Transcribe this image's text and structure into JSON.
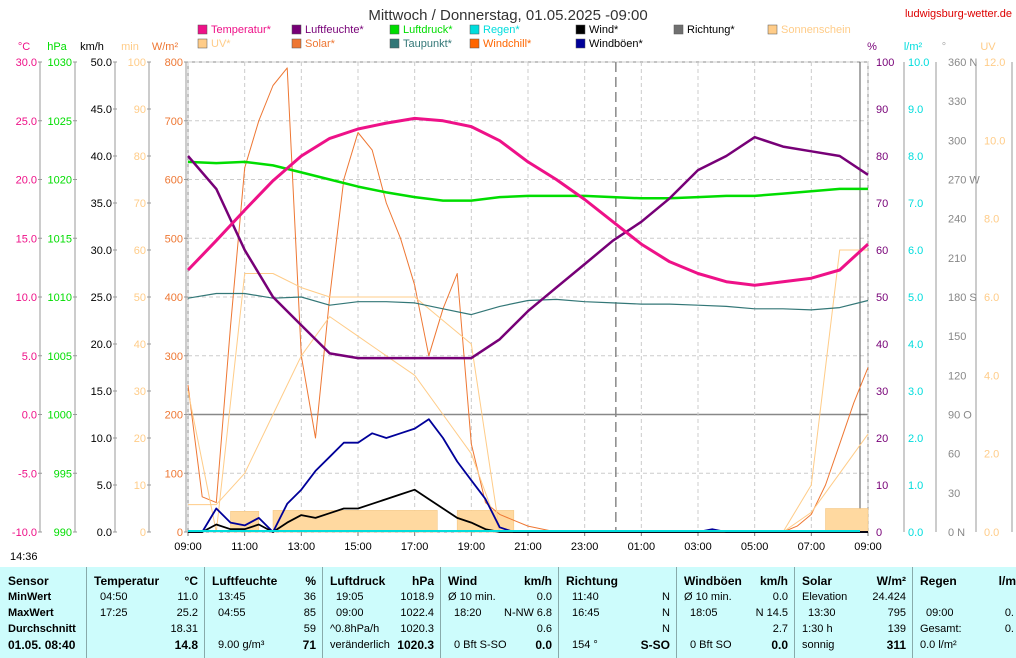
{
  "header": {
    "title": "Mittwoch / Donnerstag, 01.05.2025  -09:00",
    "site": "ludwigsburg-wetter.de"
  },
  "colors": {
    "temperature": "#ee1188",
    "humidity": "#770077",
    "pressure": "#00dd00",
    "rain": "#00dddd",
    "wind": "#000000",
    "direction": "#707070",
    "sunshine": "#ffcc88",
    "uv": "#ffcc88",
    "solar": "#ee7733",
    "dewpoint": "#337777",
    "windchill": "#ff6600",
    "gusts": "#000099",
    "table_bg": "#cdfcfc"
  },
  "legend": [
    {
      "label": "Temperatur*",
      "color": "#ee1188"
    },
    {
      "label": "Luftfeuchte*",
      "color": "#770077"
    },
    {
      "label": "Luftdruck*",
      "color": "#00dd00"
    },
    {
      "label": "Regen*",
      "color": "#00dddd"
    },
    {
      "label": "Wind*",
      "color": "#000000"
    },
    {
      "label": "Richtung*",
      "color": "#707070"
    },
    {
      "label": "Sonnenschein",
      "color": "#ffcc88"
    },
    {
      "label": "UV*",
      "color": "#ffcc88"
    },
    {
      "label": "Solar*",
      "color": "#ee7733"
    },
    {
      "label": "Taupunkt*",
      "color": "#337777"
    },
    {
      "label": "Windchill*",
      "color": "#ff6600"
    },
    {
      "label": "Windböen*",
      "color": "#000099"
    }
  ],
  "axes_units": {
    "left": [
      "°C",
      "hPa",
      "km/h",
      "min",
      "W/m²"
    ],
    "right": [
      "%",
      "l/m²",
      "°",
      "UV"
    ]
  },
  "current_time_label": "14:36",
  "chart_data": {
    "type": "line",
    "title": "Mittwoch / Donnerstag, 01.05.2025  -09:00",
    "x_ticks": [
      "09:00",
      "11:00",
      "13:00",
      "15:00",
      "17:00",
      "19:00",
      "21:00",
      "23:00",
      "01:00",
      "03:00",
      "05:00",
      "07:00",
      "09:00"
    ],
    "x_range_hours": [
      0,
      24
    ],
    "axes": {
      "temperature_c": {
        "range": [
          -10,
          30
        ],
        "ticks": [
          "30.0",
          "25.0",
          "20.0",
          "15.0",
          "10.0",
          "5.0",
          "0.0",
          "-5.0",
          "-10.0"
        ]
      },
      "pressure_hpa": {
        "range": [
          990,
          1030
        ],
        "ticks": [
          "1030",
          "1025",
          "1020",
          "1015",
          "1010",
          "1005",
          "1000",
          "995",
          "990"
        ]
      },
      "wind_kmh": {
        "range": [
          0,
          50
        ],
        "ticks": [
          "50.0",
          "45.0",
          "40.0",
          "35.0",
          "30.0",
          "25.0",
          "20.0",
          "15.0",
          "10.0",
          "5.0",
          "0.0"
        ]
      },
      "sunshine_min": {
        "range": [
          0,
          100
        ],
        "ticks": [
          "100",
          "90",
          "80",
          "70",
          "60",
          "50",
          "40",
          "30",
          "20",
          "10",
          "0"
        ]
      },
      "solar_wm2": {
        "range": [
          0,
          800
        ],
        "ticks": [
          "800",
          "700",
          "600",
          "500",
          "400",
          "300",
          "200",
          "100",
          "0"
        ]
      },
      "humidity_pct": {
        "range": [
          0,
          100
        ],
        "ticks": [
          "100",
          "90",
          "80",
          "70",
          "60",
          "50",
          "40",
          "30",
          "20",
          "10",
          "0"
        ]
      },
      "rain_lm2": {
        "range": [
          0,
          10
        ],
        "ticks": [
          "10.0",
          "9.0",
          "8.0",
          "7.0",
          "6.0",
          "5.0",
          "4.0",
          "3.0",
          "2.0",
          "1.0",
          "0.0"
        ]
      },
      "direction_deg": {
        "range": [
          0,
          360
        ],
        "ticks": [
          "360 N",
          "330",
          "300",
          "270 W",
          "240",
          "210",
          "180 S",
          "150",
          "120",
          "90 O",
          "60",
          "30",
          "0 N"
        ]
      },
      "uv": {
        "range": [
          0,
          12
        ],
        "ticks": [
          "12.0",
          "10.0",
          "8.0",
          "6.0",
          "4.0",
          "2.0",
          "0.0"
        ]
      }
    },
    "series": [
      {
        "name": "Temperatur",
        "axis": "temperature_c",
        "x": [
          0,
          1,
          2,
          3,
          4,
          5,
          6,
          7,
          8,
          9,
          10,
          11,
          12,
          13,
          14,
          15,
          16,
          17,
          18,
          19,
          20,
          21,
          22,
          23,
          24
        ],
        "y": [
          12.3,
          14.8,
          17.4,
          19.9,
          22.0,
          23.5,
          24.3,
          24.8,
          25.2,
          25.0,
          24.5,
          23.3,
          21.5,
          20.0,
          18.3,
          16.4,
          14.5,
          13.0,
          12.0,
          11.3,
          11.0,
          11.3,
          11.6,
          12.3,
          14.5
        ]
      },
      {
        "name": "Luftfeuchte",
        "axis": "humidity_pct",
        "x": [
          0,
          1,
          2,
          3,
          4,
          5,
          6,
          7,
          8,
          9,
          10,
          11,
          12,
          13,
          14,
          15,
          16,
          17,
          18,
          19,
          20,
          21,
          22,
          23,
          24
        ],
        "y": [
          80,
          73,
          60,
          50,
          44,
          38,
          37,
          37,
          37,
          37,
          37,
          41,
          47,
          52,
          57,
          62,
          66,
          71,
          77,
          80,
          84,
          82,
          81,
          80,
          76
        ]
      },
      {
        "name": "Luftdruck",
        "axis": "pressure_hpa",
        "x": [
          0,
          1,
          2,
          3,
          4,
          5,
          6,
          7,
          8,
          9,
          10,
          11,
          12,
          13,
          14,
          15,
          16,
          17,
          18,
          19,
          20,
          21,
          22,
          23,
          24
        ],
        "y": [
          1021.5,
          1021.4,
          1021.5,
          1021.2,
          1020.6,
          1020.0,
          1019.4,
          1018.9,
          1018.5,
          1018.2,
          1018.2,
          1018.5,
          1018.6,
          1018.6,
          1018.6,
          1018.5,
          1018.4,
          1018.4,
          1018.5,
          1018.6,
          1018.6,
          1018.8,
          1019.0,
          1019.2,
          1019.2
        ]
      },
      {
        "name": "Taupunkt",
        "axis": "temperature_c",
        "x": [
          0,
          1,
          2,
          3,
          4,
          5,
          6,
          7,
          8,
          9,
          10,
          11,
          12,
          13,
          14,
          15,
          16,
          17,
          18,
          19,
          20,
          21,
          22,
          23,
          24
        ],
        "y": [
          9.9,
          10.3,
          10.3,
          9.9,
          10.0,
          9.3,
          9.6,
          9.6,
          9.5,
          9.0,
          8.5,
          9.2,
          9.7,
          9.8,
          9.6,
          9.5,
          9.4,
          9.4,
          9.3,
          9.2,
          9.0,
          9.0,
          8.9,
          9.1,
          9.7
        ]
      },
      {
        "name": "Windböen",
        "axis": "wind_kmh",
        "x": [
          0,
          0.5,
          1,
          1.5,
          2,
          2.5,
          3,
          3.5,
          4,
          4.5,
          5,
          5.5,
          6,
          6.5,
          7,
          7.5,
          8,
          8.5,
          9,
          9.5,
          10,
          10.5,
          11,
          11.5,
          12,
          12.5,
          13,
          13.5,
          14,
          14.5,
          15,
          15.5,
          16,
          16.5,
          17,
          17.5,
          18,
          18.5,
          19,
          19.5,
          20,
          20.5,
          21,
          21.5,
          22,
          22.5,
          23,
          23.5,
          24
        ],
        "y": [
          0,
          0,
          2.5,
          1.0,
          0.7,
          1.5,
          0,
          3.0,
          4.5,
          6.5,
          8.0,
          9.5,
          9.5,
          10.5,
          10.0,
          10.5,
          11.0,
          12.0,
          10.0,
          7.5,
          5.5,
          3.5,
          0.5,
          0,
          0,
          0,
          0,
          0,
          0,
          0,
          0,
          0,
          0,
          0,
          0,
          0,
          0,
          0.3,
          0,
          0,
          0,
          0,
          0,
          0,
          0,
          0,
          0,
          0,
          0
        ]
      },
      {
        "name": "Wind",
        "axis": "wind_kmh",
        "x": [
          0,
          0.5,
          1,
          1.5,
          2,
          2.5,
          3,
          3.5,
          4,
          4.5,
          5,
          5.5,
          6,
          6.5,
          7,
          7.5,
          8,
          8.5,
          9,
          9.5,
          10,
          10.5,
          11,
          11.5,
          12,
          13,
          14,
          15,
          16,
          17,
          18,
          19,
          20,
          21,
          22,
          23,
          24
        ],
        "y": [
          0,
          0,
          0.8,
          0.3,
          0.3,
          0.8,
          0,
          1.0,
          1.8,
          1.5,
          2.0,
          2.5,
          2.5,
          3.0,
          3.5,
          4.0,
          4.5,
          3.5,
          2.5,
          1.5,
          1.0,
          0.3,
          0,
          0,
          0,
          0,
          0,
          0,
          0,
          0,
          0,
          0,
          0,
          0,
          0,
          0,
          0
        ]
      },
      {
        "name": "Solar",
        "axis": "solar_wm2",
        "x": [
          0,
          0.5,
          1,
          1.5,
          2,
          2.5,
          3,
          3.5,
          4,
          4.5,
          5,
          5.5,
          6,
          6.5,
          7,
          7.5,
          8,
          8.5,
          9,
          9.5,
          10,
          10.5,
          11,
          11.5,
          12,
          13,
          14,
          15,
          16,
          17,
          18,
          19,
          20,
          21,
          21.5,
          22,
          22.5,
          23,
          23.5,
          24
        ],
        "y": [
          250,
          60,
          50,
          350,
          620,
          700,
          760,
          790,
          300,
          160,
          400,
          600,
          680,
          650,
          560,
          500,
          420,
          300,
          380,
          440,
          150,
          50,
          30,
          20,
          10,
          0,
          0,
          0,
          0,
          0,
          0,
          0,
          0,
          0,
          10,
          30,
          80,
          150,
          220,
          280
        ]
      },
      {
        "name": "Sonnenschein",
        "axis": "sunshine_min",
        "x": [
          0,
          1,
          2,
          3,
          4,
          5,
          6,
          7,
          8,
          9,
          10,
          11,
          12,
          13,
          14,
          15,
          16,
          17,
          18,
          19,
          20,
          21,
          22,
          23,
          24
        ],
        "y": [
          30,
          0,
          55,
          55,
          52,
          50,
          50,
          50,
          50,
          45,
          40,
          0,
          0,
          0,
          0,
          0,
          0,
          0,
          0,
          0,
          0,
          0,
          10,
          60,
          60
        ]
      },
      {
        "name": "UV",
        "axis": "uv",
        "x": [
          0,
          1,
          2,
          3,
          4,
          5,
          6,
          7,
          8,
          9,
          10,
          11,
          12,
          13,
          14,
          15,
          16,
          17,
          18,
          19,
          20,
          21,
          22,
          23,
          24
        ],
        "y": [
          0.7,
          0.7,
          1.5,
          3.0,
          4.5,
          5.5,
          5.0,
          4.5,
          4.0,
          3.0,
          2.0,
          0,
          0,
          0,
          0,
          0,
          0,
          0,
          0,
          0,
          0,
          0,
          0.5,
          1.5,
          2.5
        ]
      }
    ],
    "sunshine_bars": {
      "axis": "wind_kmh",
      "bars": [
        [
          1.5,
          2.5,
          2.2
        ],
        [
          3.0,
          8.8,
          2.3
        ],
        [
          9.5,
          11.5,
          2.3
        ],
        [
          22.5,
          24,
          2.5
        ]
      ]
    }
  },
  "table": {
    "sensor": {
      "title": "Sensor",
      "rows": [
        "MinWert",
        "MaxWert",
        "Durchschnitt",
        "01.05. 08:40"
      ]
    },
    "temperatur": {
      "title": "Temperatur",
      "unit": "°C",
      "min_time": "04:50",
      "min": "11.0",
      "max_time": "17:25",
      "max": "25.2",
      "avg": "18.31",
      "current": "14.8"
    },
    "luftfeuchte": {
      "title": "Luftfeuchte",
      "unit": "%",
      "min_time": "13:45",
      "min": "36",
      "max_time": "04:55",
      "max": "85",
      "avg": "59",
      "abs": "9.00 g/m³",
      "current": "71"
    },
    "luftdruck": {
      "title": "Luftdruck",
      "unit": "hPa",
      "min_time": "19:05",
      "min": "1018.9",
      "max_time": "09:00",
      "max": "1022.4",
      "trend_label": "^0.8hPa/h",
      "avg": "1020.3",
      "change_label": "veränderlich",
      "current": "1020.3"
    },
    "wind": {
      "title": "Wind",
      "unit": "km/h",
      "r1_label": "Ø 10 min.",
      "r1": "0.0",
      "r2_time": "18:20",
      "r2_dir": "N-NW",
      "r2": "6.8",
      "avg": "0.6",
      "bft": "0 Bft S-SO",
      "current": "0.0"
    },
    "richtung": {
      "title": "Richtung",
      "r1_time": "11:40",
      "r1": "N",
      "r2_time": "16:45",
      "r2": "N",
      "avg": "N",
      "deg": "154 °",
      "current": "S-SO"
    },
    "windboeen": {
      "title": "Windböen",
      "unit": "km/h",
      "r1_label": "Ø 10 min.",
      "r1": "0.0",
      "r2_time": "18:05",
      "r2": "N 14.5",
      "avg": "2.7",
      "bft": "0 Bft SO",
      "current": "0.0"
    },
    "solar": {
      "title": "Solar",
      "unit": "W/m²",
      "r1_label": "Elevation",
      "r1": "24.424",
      "r2_time": "13:30",
      "r2": "795",
      "r3_label": "1:30 h",
      "r3": "139",
      "state": "sonnig",
      "current": "311"
    },
    "regen": {
      "title": "Regen",
      "unit": "l/m",
      "r2_time": "09:00",
      "r2": "0.",
      "r3_label": "Gesamt:",
      "r3": "0.",
      "current": "0.0 l/m²"
    }
  }
}
